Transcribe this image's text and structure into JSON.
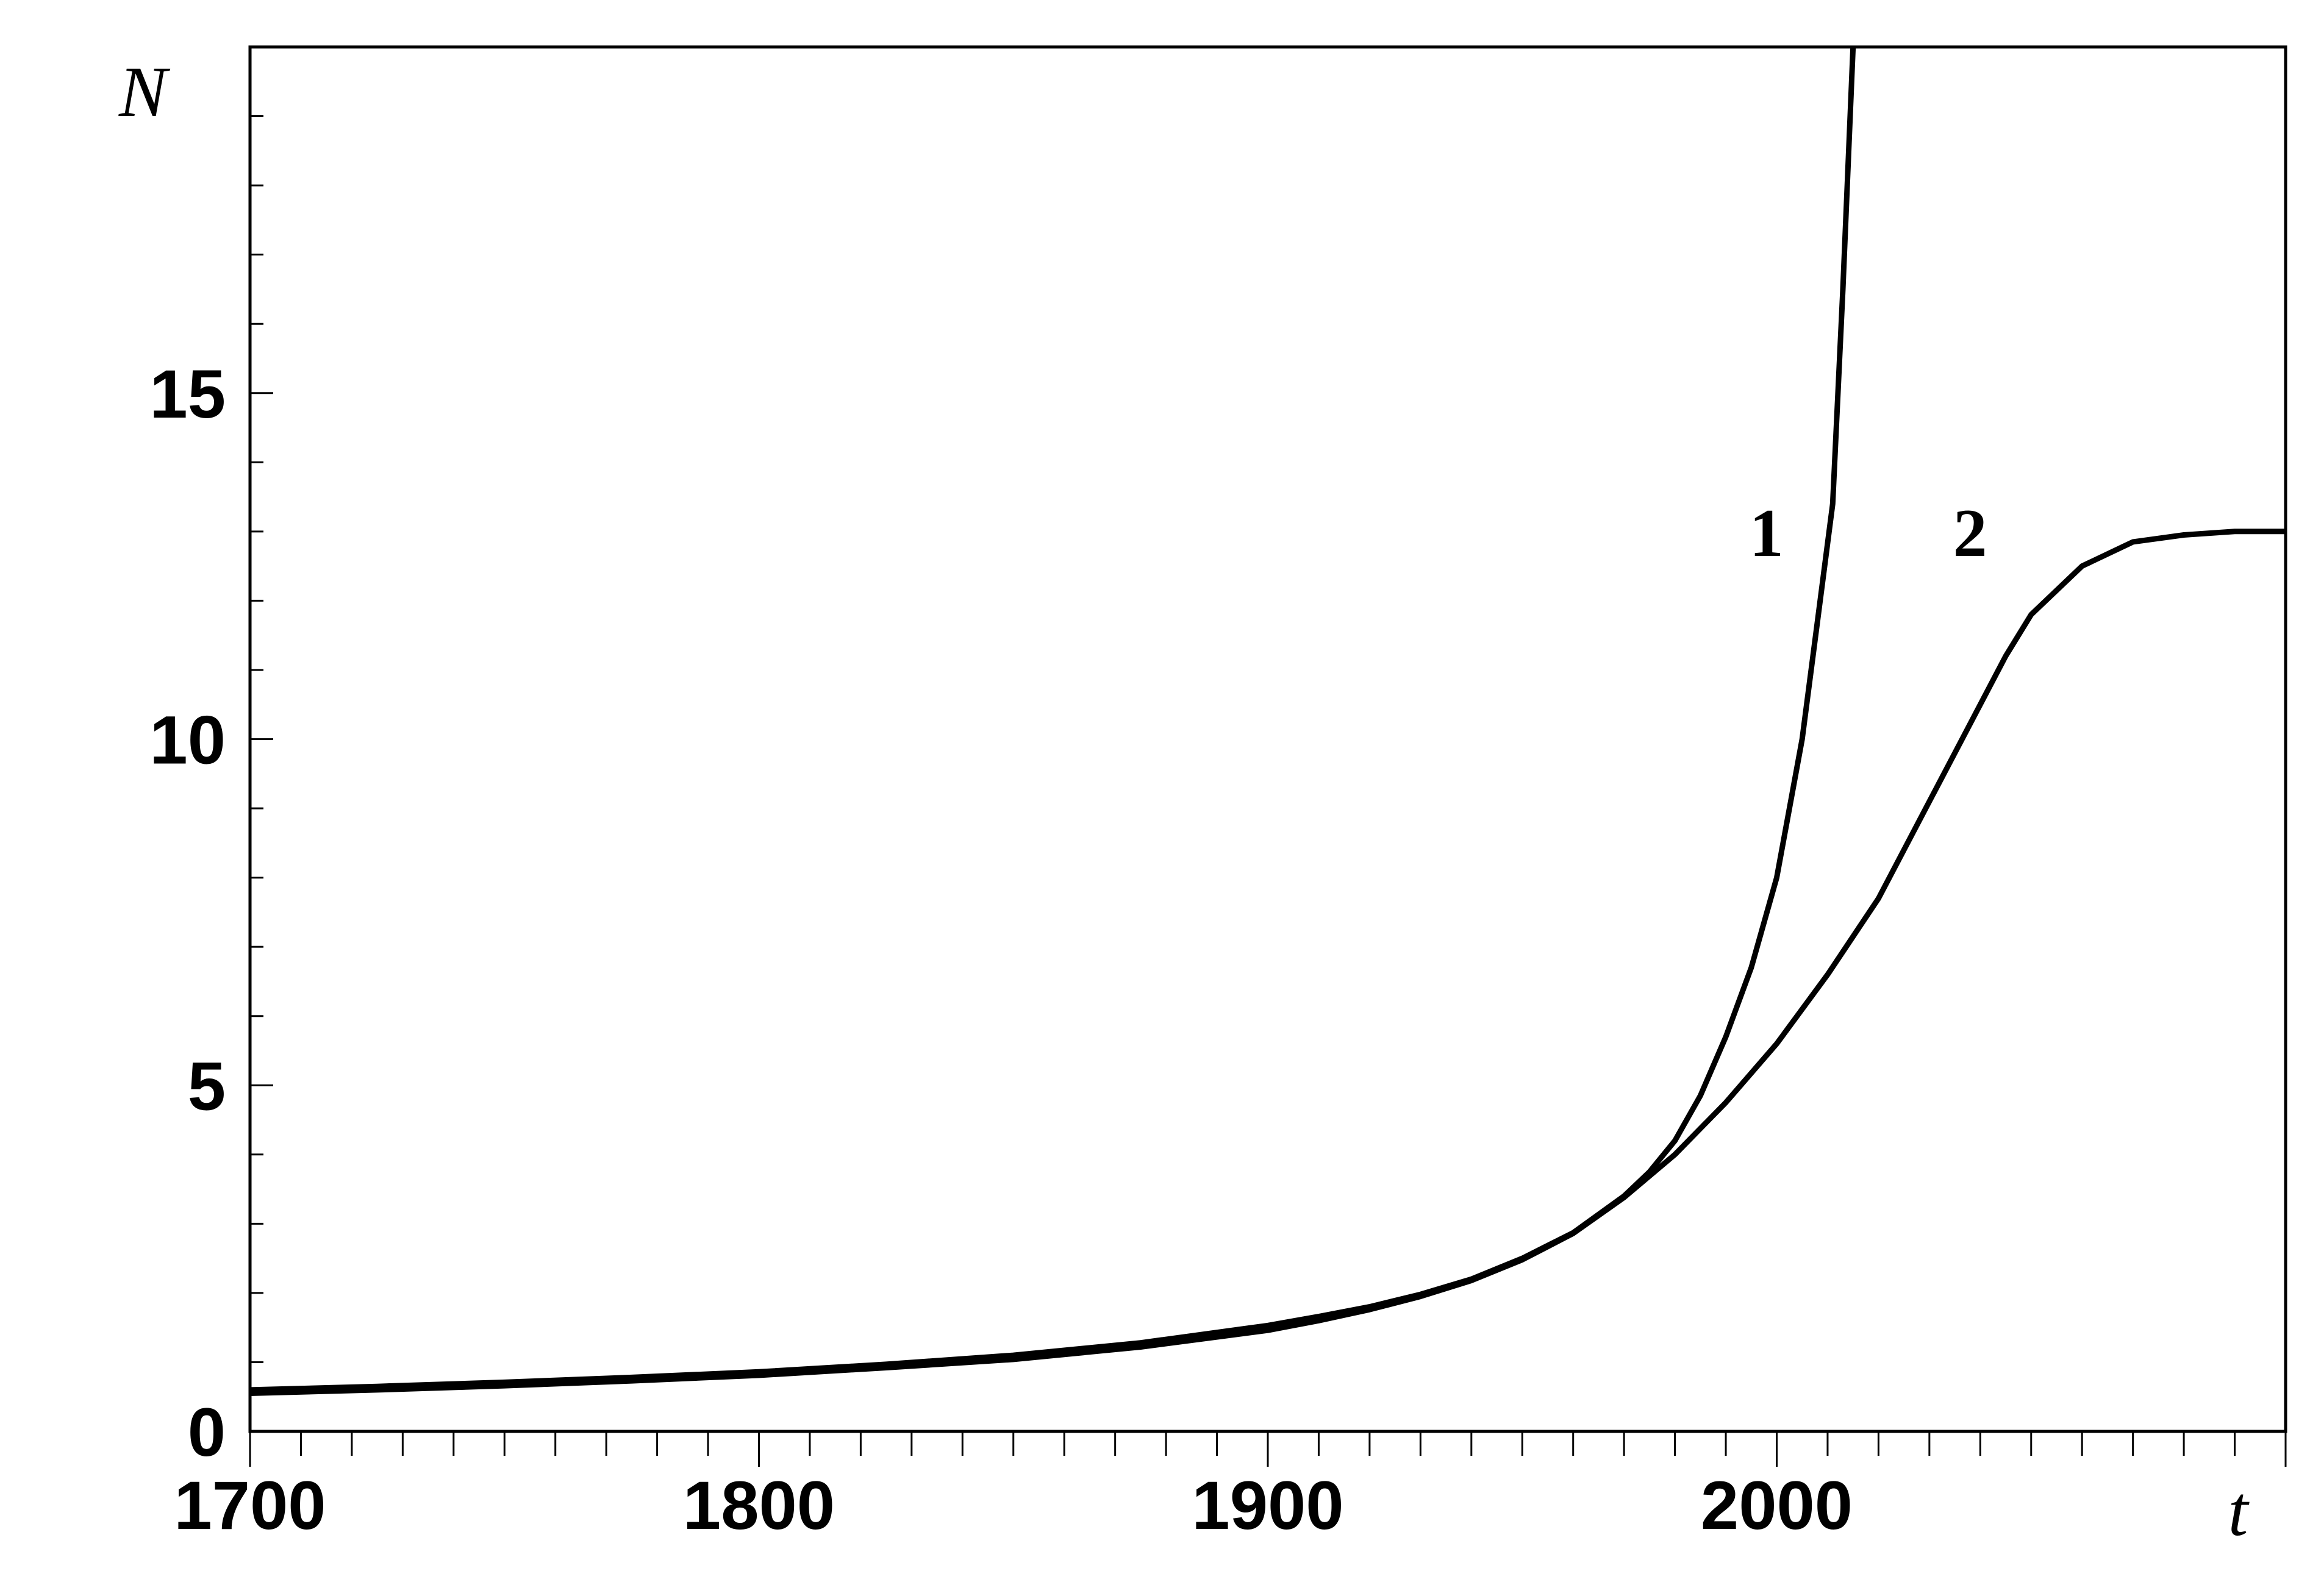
{
  "chart_data": {
    "type": "line",
    "title": "",
    "xlabel": "t",
    "ylabel": "N",
    "xlim": [
      1700,
      2100
    ],
    "ylim": [
      0,
      20
    ],
    "x_ticks": [
      1700,
      1800,
      1900,
      2000
    ],
    "x_tick_labels": [
      "1700",
      "1800",
      "1900",
      "2000"
    ],
    "x_minor_step": 10,
    "y_ticks": [
      0,
      5,
      10,
      15
    ],
    "y_tick_labels": [
      "0",
      "5",
      "10",
      "15"
    ],
    "y_minor_step": 1,
    "grid": false,
    "line_color": "#000000",
    "series": [
      {
        "label": "1",
        "label_at": {
          "x": 1998,
          "y": 13.0
        },
        "x": [
          1700,
          1725,
          1750,
          1775,
          1800,
          1825,
          1850,
          1875,
          1900,
          1910,
          1920,
          1930,
          1940,
          1950,
          1960,
          1970,
          1975,
          1980,
          1985,
          1990,
          1995,
          2000,
          2005,
          2008,
          2011,
          2013,
          2015
        ],
        "y": [
          0.6,
          0.65,
          0.71,
          0.78,
          0.86,
          0.97,
          1.1,
          1.28,
          1.53,
          1.66,
          1.8,
          1.98,
          2.2,
          2.5,
          2.87,
          3.4,
          3.75,
          4.2,
          4.85,
          5.7,
          6.7,
          8.0,
          10.0,
          11.7,
          13.4,
          16.5,
          20.0
        ]
      },
      {
        "label": "2",
        "label_at": {
          "x": 2038,
          "y": 13.0
        },
        "x": [
          1700,
          1725,
          1750,
          1775,
          1800,
          1825,
          1850,
          1875,
          1900,
          1910,
          1920,
          1930,
          1940,
          1950,
          1960,
          1970,
          1980,
          1990,
          2000,
          2010,
          2020,
          2025,
          2030,
          2035,
          2040,
          2045,
          2050,
          2060,
          2070,
          2080,
          2090,
          2100
        ],
        "y": [
          0.55,
          0.6,
          0.66,
          0.73,
          0.81,
          0.92,
          1.04,
          1.22,
          1.46,
          1.6,
          1.76,
          1.95,
          2.18,
          2.48,
          2.86,
          3.38,
          4.0,
          4.75,
          5.6,
          6.6,
          7.7,
          8.4,
          9.1,
          9.8,
          10.5,
          11.2,
          11.8,
          12.5,
          12.85,
          12.95,
          13.0,
          13.0
        ]
      }
    ]
  }
}
